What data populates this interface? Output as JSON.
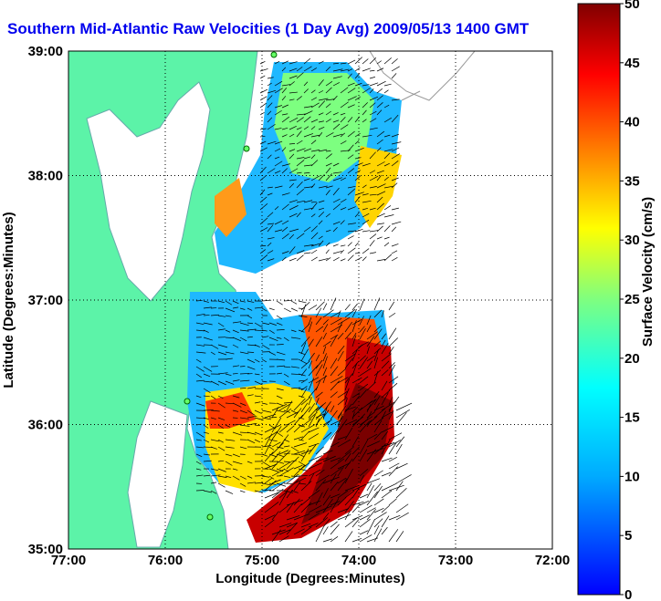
{
  "chart_data": {
    "type": "heatmap",
    "title": "Southern Mid-Atlantic Raw Velocities (1 Day Avg) 2009/05/13 1400 GMT",
    "xlabel": "Longitude (Degrees:Minutes)",
    "ylabel": "Latitude (Degrees:Minutes)",
    "x_ticks": [
      "77:00",
      "76:00",
      "75:00",
      "74:00",
      "73:00",
      "72:00"
    ],
    "y_ticks": [
      "39:00",
      "38:00",
      "37:00",
      "36:00",
      "35:00"
    ],
    "xlim": [
      -77,
      -72
    ],
    "ylim": [
      35,
      39
    ],
    "grid": true,
    "colorbar": {
      "label": "Surface Velocity (cm/s)",
      "range": [
        0,
        50
      ],
      "ticks": [
        "0",
        "5",
        "10",
        "15",
        "20",
        "25",
        "30",
        "35",
        "40",
        "45",
        "50"
      ],
      "colormap": "jet"
    },
    "colors": {
      "land": "#5cf3a8",
      "title": "#0000ee",
      "arrows": "#000000",
      "grid": "#000000"
    }
  }
}
